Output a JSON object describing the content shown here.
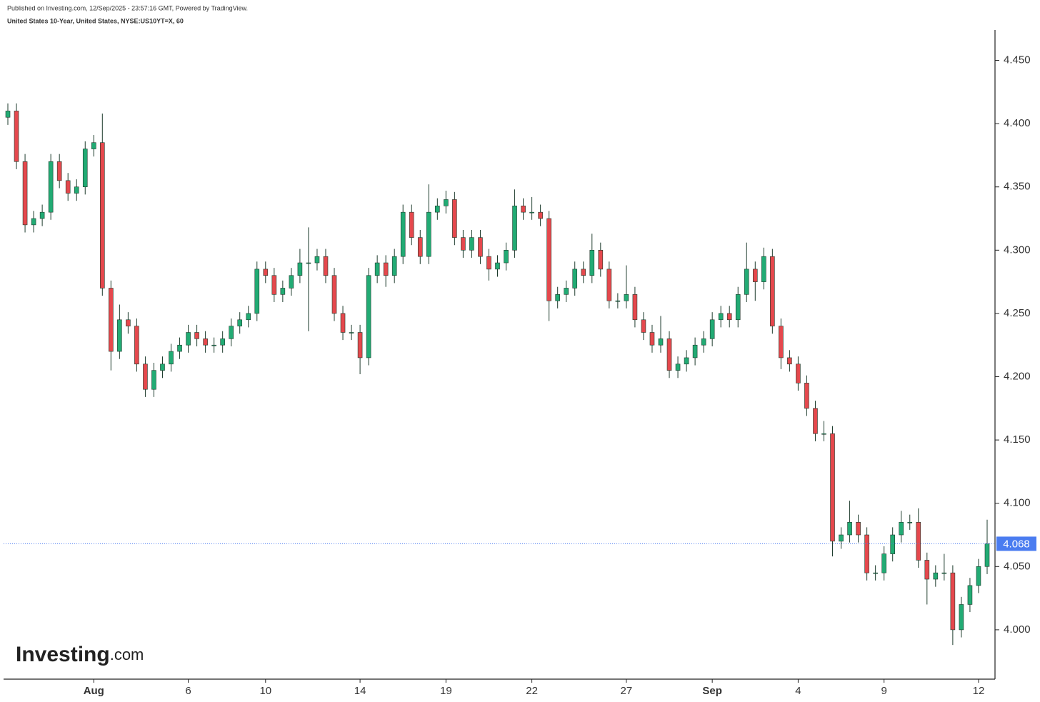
{
  "chart_data": {
    "type": "candlestick",
    "header": "Published on Investing.com, 12/Sep/2025 - 23:57:16 GMT, Powered by TradingView.",
    "title": "United States 10-Year, United States, NYSE:US10YT=X, 60",
    "logo": {
      "brand": "Investing",
      "suffix": ".com"
    },
    "categories": [
      null,
      null,
      null,
      null,
      null,
      null,
      null,
      null,
      null,
      null,
      "Aug",
      null,
      null,
      null,
      null,
      null,
      null,
      null,
      null,
      null,
      null,
      "6",
      null,
      null,
      null,
      null,
      null,
      null,
      null,
      null,
      "10",
      null,
      null,
      null,
      null,
      null,
      null,
      null,
      null,
      null,
      null,
      "14",
      null,
      null,
      null,
      null,
      null,
      null,
      null,
      null,
      null,
      "19",
      null,
      null,
      null,
      null,
      null,
      null,
      null,
      null,
      null,
      "22",
      null,
      null,
      null,
      null,
      null,
      null,
      null,
      null,
      null,
      null,
      "27",
      null,
      null,
      null,
      null,
      null,
      null,
      null,
      null,
      null,
      "Sep",
      null,
      null,
      null,
      null,
      null,
      null,
      null,
      null,
      null,
      "4",
      null,
      null,
      null,
      null,
      null,
      null,
      null,
      null,
      null,
      "9",
      null,
      null,
      null,
      null,
      null,
      null,
      null,
      null,
      null,
      null,
      "12",
      null
    ],
    "open": [
      4.405,
      4.41,
      4.37,
      4.32,
      4.325,
      4.33,
      4.37,
      4.355,
      4.345,
      4.35,
      4.38,
      4.385,
      4.27,
      4.22,
      4.245,
      4.24,
      4.21,
      4.19,
      4.205,
      4.21,
      4.22,
      4.225,
      4.235,
      4.23,
      4.225,
      4.225,
      4.23,
      4.24,
      4.245,
      4.25,
      4.285,
      4.28,
      4.265,
      4.27,
      4.28,
      4.29,
      4.29,
      4.295,
      4.28,
      4.25,
      4.235,
      4.235,
      4.215,
      4.28,
      4.29,
      4.28,
      4.295,
      4.33,
      4.31,
      4.295,
      4.33,
      4.335,
      4.34,
      4.31,
      4.3,
      4.31,
      4.295,
      4.285,
      4.29,
      4.3,
      4.335,
      4.33,
      4.33,
      4.325,
      4.26,
      4.265,
      4.27,
      4.285,
      4.28,
      4.3,
      4.285,
      4.26,
      4.26,
      4.265,
      4.245,
      4.235,
      4.225,
      4.23,
      4.205,
      4.21,
      4.215,
      4.225,
      4.23,
      4.245,
      4.25,
      4.245,
      4.265,
      4.285,
      4.275,
      4.295,
      4.24,
      4.215,
      4.21,
      4.195,
      4.175,
      4.155,
      4.155,
      4.07,
      4.075,
      4.085,
      4.075,
      4.045,
      4.045,
      4.06,
      4.075,
      4.085,
      4.085,
      4.055,
      4.04,
      4.045,
      4.045,
      4.0,
      4.02,
      4.035,
      4.05
    ],
    "high": [
      4.416,
      4.416,
      4.376,
      4.331,
      4.336,
      4.376,
      4.376,
      4.361,
      4.356,
      4.386,
      4.391,
      4.408,
      4.276,
      4.257,
      4.251,
      4.246,
      4.216,
      4.211,
      4.216,
      4.226,
      4.231,
      4.241,
      4.241,
      4.236,
      4.231,
      4.236,
      4.246,
      4.251,
      4.256,
      4.291,
      4.291,
      4.286,
      4.276,
      4.286,
      4.301,
      4.318,
      4.301,
      4.301,
      4.286,
      4.256,
      4.241,
      4.241,
      4.286,
      4.296,
      4.296,
      4.301,
      4.336,
      4.336,
      4.316,
      4.352,
      4.341,
      4.347,
      4.346,
      4.316,
      4.316,
      4.316,
      4.301,
      4.296,
      4.306,
      4.348,
      4.341,
      4.342,
      4.336,
      4.331,
      4.271,
      4.276,
      4.291,
      4.291,
      4.313,
      4.306,
      4.291,
      4.266,
      4.288,
      4.271,
      4.251,
      4.241,
      4.248,
      4.236,
      4.216,
      4.221,
      4.231,
      4.236,
      4.251,
      4.256,
      4.256,
      4.271,
      4.306,
      4.291,
      4.302,
      4.301,
      4.246,
      4.221,
      4.216,
      4.201,
      4.181,
      4.165,
      4.161,
      4.081,
      4.102,
      4.091,
      4.081,
      4.051,
      4.066,
      4.081,
      4.094,
      4.091,
      4.096,
      4.061,
      4.051,
      4.06,
      4.051,
      4.026,
      4.041,
      4.056,
      4.087
    ],
    "low": [
      4.399,
      4.364,
      4.314,
      4.314,
      4.319,
      4.324,
      4.349,
      4.339,
      4.339,
      4.344,
      4.374,
      4.264,
      4.205,
      4.214,
      4.234,
      4.204,
      4.184,
      4.184,
      4.199,
      4.204,
      4.214,
      4.219,
      4.224,
      4.219,
      4.219,
      4.219,
      4.224,
      4.234,
      4.239,
      4.244,
      4.274,
      4.259,
      4.259,
      4.264,
      4.274,
      4.236,
      4.284,
      4.274,
      4.244,
      4.229,
      4.229,
      4.202,
      4.209,
      4.274,
      4.271,
      4.274,
      4.289,
      4.304,
      4.289,
      4.289,
      4.324,
      4.329,
      4.304,
      4.294,
      4.294,
      4.289,
      4.276,
      4.279,
      4.284,
      4.294,
      4.324,
      4.324,
      4.319,
      4.244,
      4.254,
      4.259,
      4.264,
      4.274,
      4.274,
      4.279,
      4.254,
      4.254,
      4.254,
      4.239,
      4.229,
      4.219,
      4.219,
      4.199,
      4.199,
      4.204,
      4.209,
      4.219,
      4.224,
      4.239,
      4.239,
      4.239,
      4.259,
      4.26,
      4.269,
      4.234,
      4.206,
      4.204,
      4.189,
      4.169,
      4.149,
      4.149,
      4.058,
      4.064,
      4.069,
      4.069,
      4.039,
      4.039,
      4.039,
      4.054,
      4.069,
      4.079,
      4.049,
      4.02,
      4.034,
      4.039,
      3.988,
      3.994,
      4.014,
      4.029,
      4.044
    ],
    "close": [
      4.41,
      4.37,
      4.32,
      4.325,
      4.33,
      4.37,
      4.355,
      4.345,
      4.35,
      4.38,
      4.385,
      4.27,
      4.22,
      4.245,
      4.24,
      4.21,
      4.19,
      4.205,
      4.21,
      4.22,
      4.225,
      4.235,
      4.23,
      4.225,
      4.225,
      4.23,
      4.24,
      4.245,
      4.25,
      4.285,
      4.28,
      4.265,
      4.27,
      4.28,
      4.29,
      4.29,
      4.295,
      4.28,
      4.25,
      4.235,
      4.235,
      4.215,
      4.28,
      4.29,
      4.28,
      4.295,
      4.33,
      4.31,
      4.295,
      4.33,
      4.335,
      4.34,
      4.31,
      4.3,
      4.31,
      4.295,
      4.285,
      4.29,
      4.3,
      4.335,
      4.33,
      4.33,
      4.325,
      4.26,
      4.265,
      4.27,
      4.285,
      4.28,
      4.3,
      4.285,
      4.26,
      4.26,
      4.265,
      4.245,
      4.235,
      4.225,
      4.23,
      4.205,
      4.21,
      4.215,
      4.225,
      4.23,
      4.245,
      4.25,
      4.245,
      4.265,
      4.285,
      4.275,
      4.295,
      4.24,
      4.215,
      4.21,
      4.195,
      4.175,
      4.155,
      4.155,
      4.07,
      4.075,
      4.085,
      4.075,
      4.045,
      4.045,
      4.06,
      4.075,
      4.085,
      4.085,
      4.055,
      4.04,
      4.045,
      4.045,
      4.0,
      4.02,
      4.035,
      4.05,
      4.068
    ],
    "up_color": "#22ab74",
    "down_color": "#e5484d",
    "wick_color": "#1d3b2c",
    "last_price_color": "#4a7cf0",
    "ylim": [
      3.961,
      4.474
    ],
    "yticks": [
      {
        "value": 4.0,
        "label": "4.000"
      },
      {
        "value": 4.05,
        "label": "4.050"
      },
      {
        "value": 4.1,
        "label": "4.100"
      },
      {
        "value": 4.15,
        "label": "4.150"
      },
      {
        "value": 4.2,
        "label": "4.200"
      },
      {
        "value": 4.25,
        "label": "4.250"
      },
      {
        "value": 4.3,
        "label": "4.300"
      },
      {
        "value": 4.35,
        "label": "4.350"
      },
      {
        "value": 4.4,
        "label": "4.400"
      },
      {
        "value": 4.45,
        "label": "4.450"
      }
    ],
    "grid": false
  }
}
